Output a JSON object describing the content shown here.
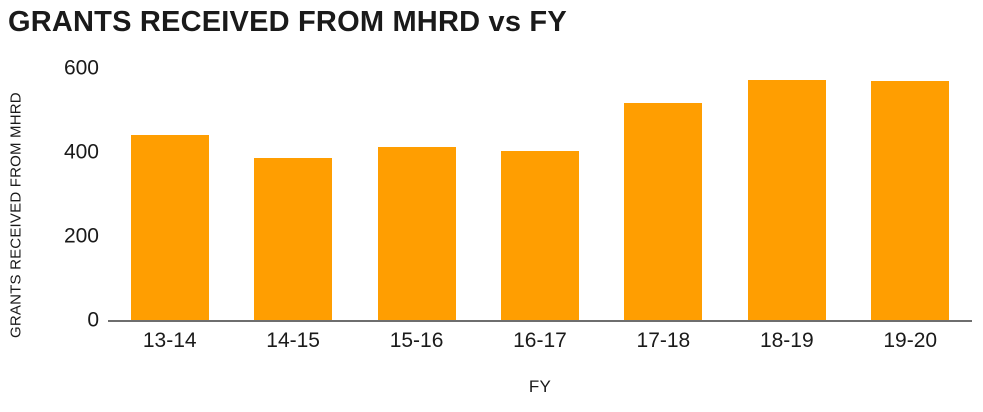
{
  "chart_data": {
    "type": "bar",
    "title": "GRANTS RECEIVED FROM MHRD vs FY",
    "xlabel": "FY",
    "ylabel": "GRANTS RECEIVED FROM MHRD",
    "categories": [
      "13-14",
      "14-15",
      "15-16",
      "16-17",
      "17-18",
      "18-19",
      "19-20"
    ],
    "values": [
      440,
      385,
      412,
      403,
      516,
      572,
      568
    ],
    "yticks": [
      0,
      200,
      400,
      600
    ],
    "ylim": [
      0,
      600
    ],
    "grid": "off",
    "legend": "none",
    "colors": {
      "bar": "#FF9E01",
      "axis_line": "#6E6E6E",
      "text": "#1A1A1A",
      "background": "#FFFFFF"
    }
  }
}
